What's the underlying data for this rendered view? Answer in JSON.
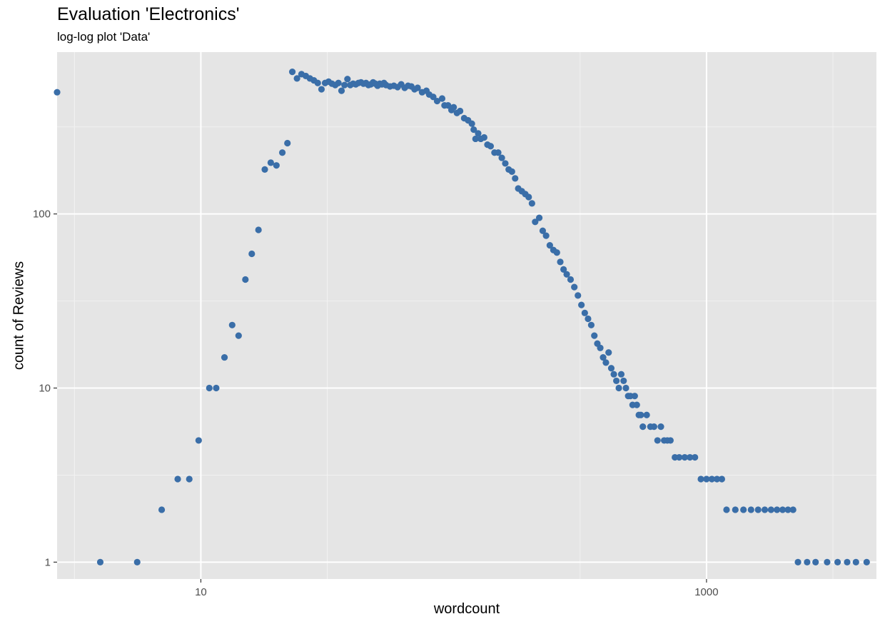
{
  "chart_data": {
    "type": "scatter",
    "title": "Evaluation 'Electronics'",
    "subtitle": "log-log plot 'Data'",
    "xlabel": "wordcount",
    "ylabel": "count of Reviews",
    "x_scale": "log10",
    "y_scale": "log10",
    "xlim": [
      2.7,
      4700
    ],
    "ylim": [
      0.8,
      850
    ],
    "x_ticks": [
      10,
      1000
    ],
    "x_tick_labels": [
      "10",
      "1000"
    ],
    "y_ticks": [
      1,
      10,
      100
    ],
    "y_tick_labels": [
      "1",
      "10",
      "100"
    ],
    "grid": true,
    "point_color": "#3A6EA8",
    "panel_background": "#E5E5E5",
    "points": [
      [
        2.7,
        500
      ],
      [
        4,
        1
      ],
      [
        5.6,
        1
      ],
      [
        7,
        2
      ],
      [
        8.1,
        3
      ],
      [
        9,
        3
      ],
      [
        9.8,
        5
      ],
      [
        10.8,
        10
      ],
      [
        11.5,
        10
      ],
      [
        12.4,
        15
      ],
      [
        13.3,
        23
      ],
      [
        14.1,
        20
      ],
      [
        15,
        42
      ],
      [
        15.9,
        59
      ],
      [
        16.9,
        81
      ],
      [
        17.9,
        180
      ],
      [
        18.9,
        197
      ],
      [
        19.9,
        190
      ],
      [
        21,
        225
      ],
      [
        22,
        255
      ],
      [
        23,
        655
      ],
      [
        24,
        600
      ],
      [
        25,
        635
      ],
      [
        26,
        620
      ],
      [
        27,
        600
      ],
      [
        28,
        585
      ],
      [
        29,
        565
      ],
      [
        30,
        520
      ],
      [
        31,
        565
      ],
      [
        32,
        575
      ],
      [
        33,
        560
      ],
      [
        34,
        550
      ],
      [
        35,
        565
      ],
      [
        36,
        510
      ],
      [
        37,
        550
      ],
      [
        38,
        595
      ],
      [
        39,
        550
      ],
      [
        40,
        560
      ],
      [
        41,
        555
      ],
      [
        42,
        565
      ],
      [
        43,
        570
      ],
      [
        44,
        560
      ],
      [
        45,
        565
      ],
      [
        46,
        550
      ],
      [
        47,
        555
      ],
      [
        48,
        570
      ],
      [
        49,
        560
      ],
      [
        50,
        545
      ],
      [
        51,
        560
      ],
      [
        52,
        555
      ],
      [
        53,
        565
      ],
      [
        54,
        550
      ],
      [
        56,
        540
      ],
      [
        58,
        545
      ],
      [
        60,
        535
      ],
      [
        62,
        555
      ],
      [
        64,
        530
      ],
      [
        66,
        545
      ],
      [
        68,
        540
      ],
      [
        70,
        520
      ],
      [
        72,
        530
      ],
      [
        75,
        500
      ],
      [
        78,
        510
      ],
      [
        80,
        485
      ],
      [
        83,
        470
      ],
      [
        86,
        445
      ],
      [
        90,
        460
      ],
      [
        92,
        420
      ],
      [
        95,
        420
      ],
      [
        98,
        395
      ],
      [
        100,
        410
      ],
      [
        103,
        380
      ],
      [
        106,
        390
      ],
      [
        110,
        355
      ],
      [
        114,
        345
      ],
      [
        118,
        330
      ],
      [
        120,
        305
      ],
      [
        122,
        270
      ],
      [
        125,
        290
      ],
      [
        128,
        270
      ],
      [
        132,
        275
      ],
      [
        136,
        250
      ],
      [
        140,
        245
      ],
      [
        145,
        225
      ],
      [
        150,
        225
      ],
      [
        155,
        210
      ],
      [
        160,
        195
      ],
      [
        165,
        180
      ],
      [
        170,
        175
      ],
      [
        175,
        160
      ],
      [
        180,
        140
      ],
      [
        186,
        135
      ],
      [
        192,
        130
      ],
      [
        198,
        125
      ],
      [
        204,
        115
      ],
      [
        210,
        90
      ],
      [
        218,
        95
      ],
      [
        225,
        80
      ],
      [
        232,
        75
      ],
      [
        240,
        66
      ],
      [
        248,
        62
      ],
      [
        256,
        60
      ],
      [
        264,
        53
      ],
      [
        272,
        48
      ],
      [
        280,
        45
      ],
      [
        290,
        42
      ],
      [
        300,
        38
      ],
      [
        310,
        34
      ],
      [
        320,
        30
      ],
      [
        330,
        27
      ],
      [
        340,
        25
      ],
      [
        350,
        23
      ],
      [
        360,
        20
      ],
      [
        370,
        18
      ],
      [
        380,
        17
      ],
      [
        390,
        15
      ],
      [
        400,
        14
      ],
      [
        410,
        16
      ],
      [
        420,
        13
      ],
      [
        430,
        12
      ],
      [
        440,
        11
      ],
      [
        450,
        10
      ],
      [
        460,
        12
      ],
      [
        470,
        11
      ],
      [
        480,
        10
      ],
      [
        490,
        9
      ],
      [
        500,
        9
      ],
      [
        510,
        8
      ],
      [
        520,
        9
      ],
      [
        530,
        8
      ],
      [
        540,
        7
      ],
      [
        550,
        7
      ],
      [
        560,
        6
      ],
      [
        580,
        7
      ],
      [
        600,
        6
      ],
      [
        620,
        6
      ],
      [
        640,
        5
      ],
      [
        660,
        6
      ],
      [
        680,
        5
      ],
      [
        700,
        5
      ],
      [
        720,
        5
      ],
      [
        750,
        4
      ],
      [
        780,
        4
      ],
      [
        820,
        4
      ],
      [
        860,
        4
      ],
      [
        900,
        4
      ],
      [
        950,
        3
      ],
      [
        1000,
        3
      ],
      [
        1050,
        3
      ],
      [
        1100,
        3
      ],
      [
        1150,
        3
      ],
      [
        1200,
        2
      ],
      [
        1300,
        2
      ],
      [
        1400,
        2
      ],
      [
        1500,
        2
      ],
      [
        1600,
        2
      ],
      [
        1700,
        2
      ],
      [
        1800,
        2
      ],
      [
        1900,
        2
      ],
      [
        2000,
        2
      ],
      [
        2100,
        2
      ],
      [
        2200,
        2
      ],
      [
        2300,
        1
      ],
      [
        2500,
        1
      ],
      [
        2700,
        1
      ],
      [
        3000,
        1
      ],
      [
        3300,
        1
      ],
      [
        3600,
        1
      ],
      [
        3900,
        1
      ],
      [
        4300,
        1
      ]
    ]
  }
}
